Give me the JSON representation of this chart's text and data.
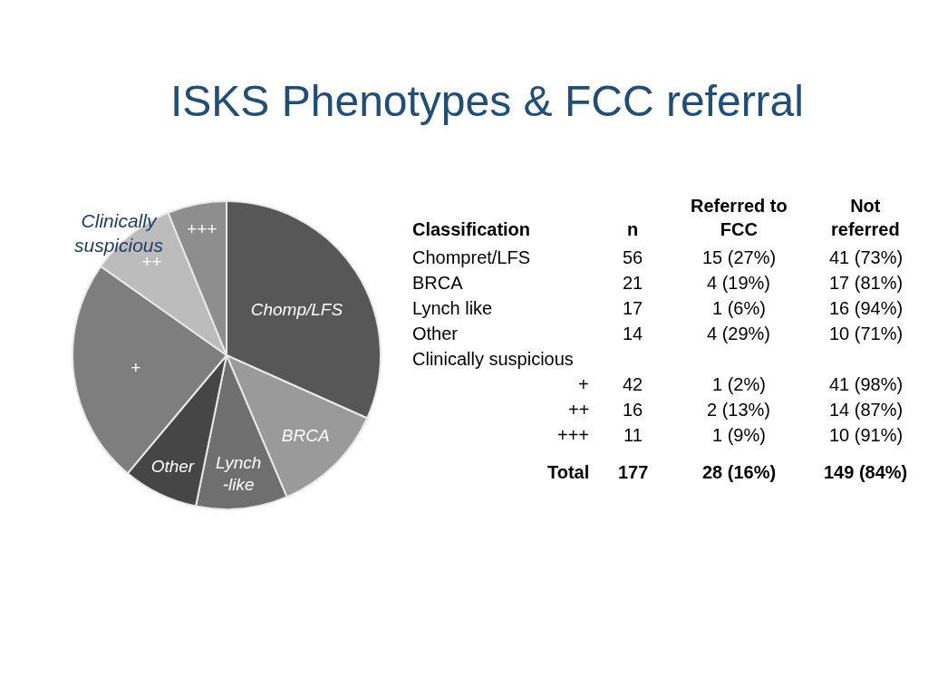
{
  "chart_data": {
    "type": "pie",
    "title": "ISKS Phenotypes & FCC referral",
    "categories": [
      "Chomp/LFS",
      "BRCA",
      "Lynch\n-like",
      "Other",
      "+",
      "++",
      "+++"
    ],
    "values": [
      31.7,
      11.9,
      9.6,
      7.9,
      23.7,
      9.0,
      6.2
    ],
    "colors": [
      "#575757",
      "#9a9a9a",
      "#6f6f6f",
      "#464646",
      "#7e7e7e",
      "#bcbcbc",
      "#8e8e8e"
    ],
    "legend": false,
    "annotations": [
      "Clinically\nsuspicious",
      "Classification",
      "Chompret/LFS",
      "BRCA",
      "Lynch like",
      "Other",
      "Clinically suspicious",
      "+",
      "++",
      "+++",
      "Total",
      "n",
      "56",
      "21",
      "17",
      "14",
      "42",
      "16",
      "11",
      "177",
      "Referred to\nFCC",
      "15 (27%)",
      "4 (19%)",
      "1 (6%)",
      "4 (29%)",
      "1 (2%)",
      "2 (13%)",
      "1 (9%)",
      "28 (16%)",
      "Not\nreferred",
      "41 (73%)",
      "17 (81%)",
      "16 (94%)",
      "10 (71%)",
      "41 (98%)",
      "14 (87%)",
      "10 (91%)",
      "149 (84%)"
    ]
  }
}
